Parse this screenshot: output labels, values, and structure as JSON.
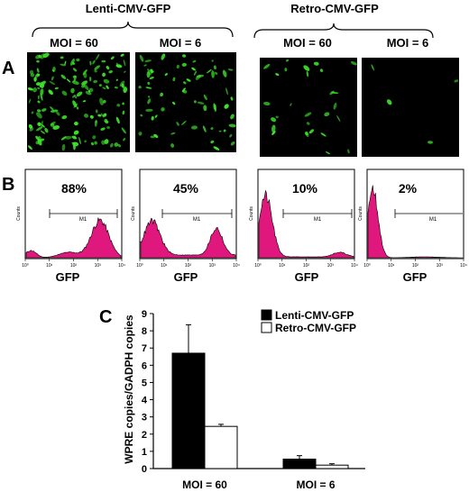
{
  "figure": {
    "group_labels": [
      "Lenti-CMV-GFP",
      "Retro-CMV-GFP"
    ],
    "moi_labels": [
      "MOI = 60",
      "MOI = 6",
      "MOI = 60",
      "MOI = 6"
    ],
    "panel_labels": {
      "a": "A",
      "b": "B",
      "c": "C"
    },
    "panel_a": {
      "background_color": "#000000",
      "cell_color": "#3ee62a"
    },
    "panel_b": {
      "fill_color": "#e0177c",
      "percentages": [
        "88%",
        "45%",
        "10%",
        "2%"
      ],
      "gate_label": "M1",
      "y_axis_label": "Counts",
      "x_axis_label": "GFP",
      "x_tick_labels": [
        "10⁰",
        "10¹",
        "10²",
        "10³",
        "10⁴"
      ]
    }
  },
  "chart_data": {
    "type": "bar",
    "categories": [
      "MOI = 60",
      "MOI = 6"
    ],
    "series": [
      {
        "name": "Lenti-CMV-GFP",
        "values": [
          6.7,
          0.55
        ],
        "errors": [
          1.65,
          0.2
        ],
        "color": "#000000"
      },
      {
        "name": "Retro-CMV-GFP",
        "values": [
          2.45,
          0.2
        ],
        "errors": [
          0.12,
          0.08
        ],
        "color": "#ffffff"
      }
    ],
    "title": "",
    "xlabel": "",
    "ylabel": "WPRE copies/GADPH copies",
    "ylim": [
      0,
      9
    ],
    "yticks": [
      0,
      1,
      2,
      3,
      4,
      5,
      6,
      7,
      8,
      9
    ],
    "legend_position": "top-right",
    "grid": false
  }
}
